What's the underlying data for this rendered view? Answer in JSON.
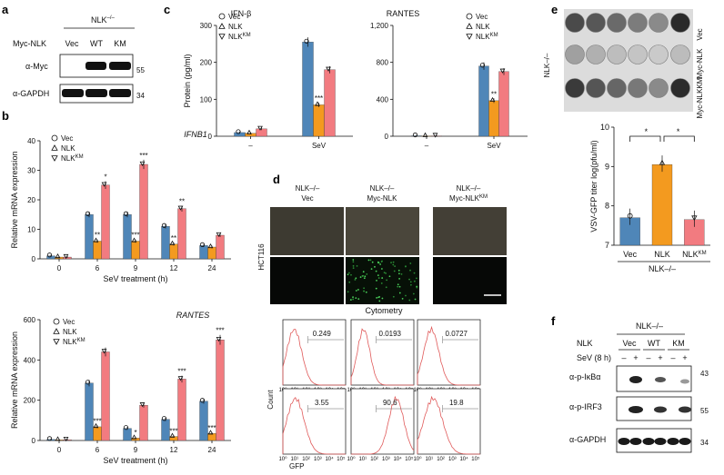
{
  "panel_labels": {
    "a": "a",
    "b": "b",
    "c": "c",
    "d": "d",
    "e": "e",
    "f": "f"
  },
  "panel_a": {
    "genotype": "NLK",
    "genotype_sup": "–/–",
    "row_label": "Myc-NLK",
    "lanes": [
      "Vec",
      "WT",
      "KM"
    ],
    "blots": [
      {
        "label": "α-Myc",
        "mw": "55"
      },
      {
        "label": "α-GAPDH",
        "mw": "34"
      }
    ]
  },
  "panel_d": {
    "columns": [
      {
        "line1": "NLK–/–",
        "line2": "Vec"
      },
      {
        "line1": "NLK–/–",
        "line2": "Myc-NLK"
      },
      {
        "line1": "NLK–/–",
        "line2": "Myc-NLK",
        "line2_sup": "KM"
      }
    ],
    "cell_line": "HCT116",
    "cytometry_title": "Cytometry",
    "count_label": "Count",
    "gfp_label": "GFP",
    "pct_top": [
      "0.249",
      "0.0193",
      "0.0727"
    ],
    "pct_bottom": [
      "3.55",
      "90.6",
      "19.8"
    ]
  },
  "panel_e": {
    "genotype_label": "NLK–/–",
    "rows": [
      "Vec",
      "Myc-NLK",
      "Myc-NLKKM"
    ]
  },
  "panel_f": {
    "genotype": "NLK–/–",
    "nlk_label": "NLK",
    "groups": [
      "Vec",
      "WT",
      "KM"
    ],
    "sev_label": "SeV (8 h)",
    "signs": [
      "–",
      "+",
      "–",
      "+",
      "–",
      "+"
    ],
    "blots": [
      {
        "label": "α-p-IκBα",
        "mw": "43"
      },
      {
        "label": "α-p-IRF3",
        "mw": "55"
      },
      {
        "label": "α-GAPDH",
        "mw": "34"
      }
    ]
  },
  "legend_labels": {
    "vec": "Vec",
    "nlk": "NLK",
    "nlkkm": "NLK",
    "km_sup": "KM"
  },
  "chart_data": [
    {
      "id": "b_ifnb1",
      "type": "bar",
      "title": "IFNB1",
      "xlabel": "SeV treatment (h)",
      "ylabel": "Relative mRNA expression",
      "categories": [
        "0",
        "6",
        "9",
        "12",
        "24"
      ],
      "ylim": [
        0,
        40
      ],
      "yticks": [
        "0",
        "10",
        "20",
        "30",
        "40"
      ],
      "series": [
        {
          "name": "Vec",
          "color": "#4f86b8",
          "values": [
            1,
            15,
            15,
            11,
            4.5
          ]
        },
        {
          "name": "NLK",
          "color": "#f39a1f",
          "values": [
            0.6,
            6,
            6,
            5,
            4
          ]
        },
        {
          "name": "NLKKM",
          "color": "#f27b80",
          "values": [
            0.6,
            25,
            32,
            17,
            8
          ]
        }
      ],
      "significance": [
        [
          "",
          "",
          ""
        ],
        [
          "",
          "**",
          "*"
        ],
        [
          "",
          "***",
          "***"
        ],
        [
          "",
          "**",
          "**"
        ],
        [
          "",
          "",
          ""
        ]
      ]
    },
    {
      "id": "b_rantes",
      "type": "bar",
      "title": "RANTES",
      "xlabel": "SeV treatment (h)",
      "ylabel": "Relative mRNA expression",
      "categories": [
        "0",
        "6",
        "9",
        "12",
        "24"
      ],
      "ylim": [
        0,
        600
      ],
      "yticks": [
        "0",
        "200",
        "400",
        "600"
      ],
      "series": [
        {
          "name": "Vec",
          "color": "#4f86b8",
          "values": [
            5,
            285,
            60,
            105,
            195
          ]
        },
        {
          "name": "NLK",
          "color": "#f39a1f",
          "values": [
            3,
            68,
            12,
            20,
            35
          ]
        },
        {
          "name": "NLKKM",
          "color": "#f27b80",
          "values": [
            4,
            440,
            175,
            305,
            500
          ]
        }
      ],
      "significance": [
        [
          "",
          "",
          ""
        ],
        [
          "",
          "***",
          ""
        ],
        [
          "",
          "*",
          ""
        ],
        [
          "",
          "***",
          "***"
        ],
        [
          "",
          "***",
          "***"
        ]
      ]
    },
    {
      "id": "c_ifnb",
      "type": "bar",
      "title": "IFN-β",
      "ylabel": "Protein (pg/ml)",
      "categories": [
        "–",
        "SeV"
      ],
      "ylim": [
        0,
        300
      ],
      "yticks": [
        "0",
        "100",
        "200",
        "300"
      ],
      "series": [
        {
          "name": "Vec",
          "color": "#4f86b8",
          "values": [
            10,
            255
          ]
        },
        {
          "name": "NLK",
          "color": "#f39a1f",
          "values": [
            8,
            85
          ]
        },
        {
          "name": "NLKKM",
          "color": "#f27b80",
          "values": [
            20,
            180
          ]
        }
      ],
      "significance": [
        [
          "",
          "",
          ""
        ],
        [
          "",
          "***",
          ""
        ]
      ]
    },
    {
      "id": "c_rantes",
      "type": "bar",
      "title": "RANTES",
      "categories": [
        "–",
        "SeV"
      ],
      "ylim": [
        0,
        1200
      ],
      "yticks": [
        "0",
        "400",
        "800",
        "1,200"
      ],
      "series": [
        {
          "name": "Vec",
          "color": "#4f86b8",
          "values": [
            5,
            760
          ]
        },
        {
          "name": "NLK",
          "color": "#f39a1f",
          "values": [
            3,
            385
          ]
        },
        {
          "name": "NLKKM",
          "color": "#f27b80",
          "values": [
            4,
            700
          ]
        }
      ],
      "significance": [
        [
          "",
          "",
          ""
        ],
        [
          "",
          "**",
          ""
        ]
      ]
    },
    {
      "id": "e_titer",
      "type": "bar",
      "ylabel": "VSV-GFP titer log(pfu/ml)",
      "categories": [
        "Vec",
        "NLK",
        "NLKKM"
      ],
      "ylim": [
        7,
        10
      ],
      "yticks": [
        "7",
        "8",
        "9",
        "10"
      ],
      "colors": [
        "#4f86b8",
        "#f39a1f",
        "#f27b80"
      ],
      "values": [
        7.7,
        9.05,
        7.65
      ],
      "xgroup_label": "NLK–/–",
      "significance": [
        "*",
        "*"
      ]
    }
  ]
}
